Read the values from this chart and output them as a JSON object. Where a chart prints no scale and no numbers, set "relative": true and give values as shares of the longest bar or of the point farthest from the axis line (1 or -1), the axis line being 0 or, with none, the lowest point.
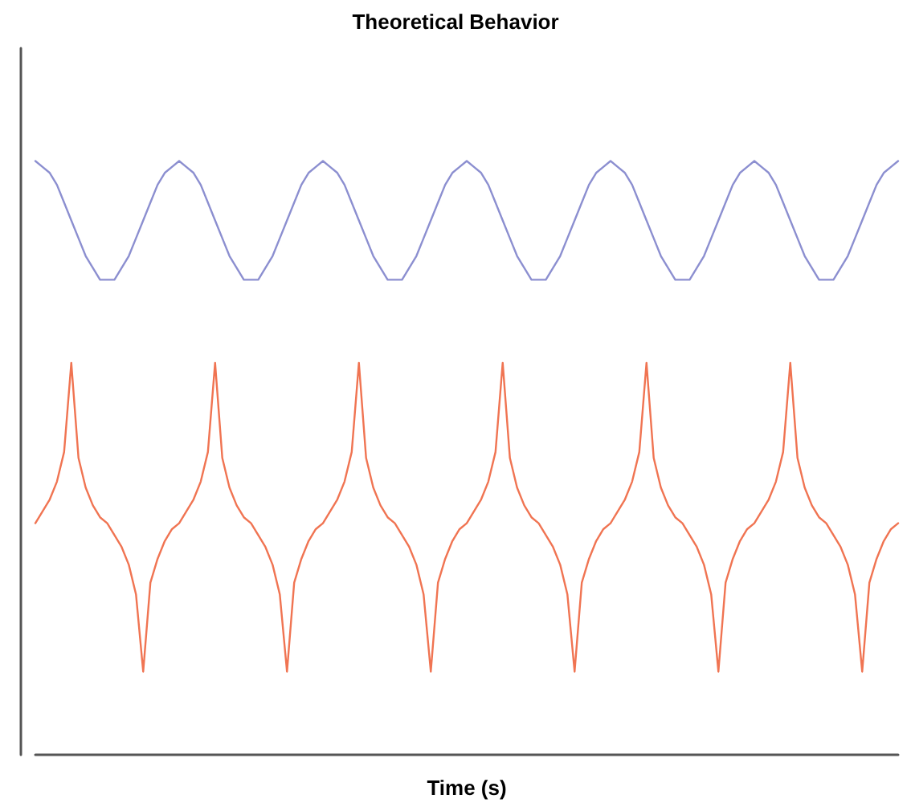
{
  "chart_data": {
    "type": "line",
    "title": "Theoretical Behavior",
    "xlabel": "Time (s)",
    "relative": true,
    "line_style": "solid",
    "grid": false,
    "categories": [
      null,
      null,
      null,
      null,
      null,
      null,
      null,
      null,
      null,
      null,
      null,
      null,
      null,
      null,
      null,
      null,
      null,
      null,
      null,
      null,
      null,
      null,
      null,
      null,
      null,
      null,
      null,
      null,
      null,
      null,
      null,
      null,
      null,
      null,
      null,
      null,
      null,
      null,
      null,
      null,
      null,
      null,
      null,
      null,
      null,
      null,
      null,
      null,
      null,
      null,
      null,
      null,
      null,
      null,
      null,
      null,
      null,
      null,
      null,
      null,
      null,
      null,
      null,
      null,
      null,
      null,
      null,
      null,
      null,
      null,
      null,
      null,
      null,
      null,
      null,
      null,
      null,
      null,
      null,
      null,
      null,
      null,
      null,
      null,
      null,
      null,
      null,
      null,
      null,
      null,
      null,
      null,
      null,
      null,
      null,
      null,
      null,
      null,
      null,
      null,
      null,
      null,
      null,
      null,
      null,
      null,
      null,
      null,
      null,
      null,
      null,
      null,
      null,
      null,
      null,
      null,
      null,
      null,
      null,
      null,
      null
    ],
    "series": [
      {
        "color": "#8c8fd0",
        "values": [
          1,
          0.99,
          0.98,
          0.96,
          0.93,
          0.9,
          0.87,
          0.84,
          0.82,
          0.8,
          0.8,
          0.8,
          0.82,
          0.84,
          0.87,
          0.9,
          0.93,
          0.96,
          0.98,
          0.99,
          1,
          0.99,
          0.98,
          0.96,
          0.93,
          0.9,
          0.87,
          0.84,
          0.82,
          0.8,
          0.8,
          0.8,
          0.82,
          0.84,
          0.87,
          0.9,
          0.93,
          0.96,
          0.98,
          0.99,
          1,
          0.99,
          0.98,
          0.96,
          0.93,
          0.9,
          0.87,
          0.84,
          0.82,
          0.8,
          0.8,
          0.8,
          0.82,
          0.84,
          0.87,
          0.9,
          0.93,
          0.96,
          0.98,
          0.99,
          1,
          0.99,
          0.98,
          0.96,
          0.93,
          0.9,
          0.87,
          0.84,
          0.82,
          0.8,
          0.8,
          0.8,
          0.82,
          0.84,
          0.87,
          0.9,
          0.93,
          0.96,
          0.98,
          0.99,
          1,
          0.99,
          0.98,
          0.96,
          0.93,
          0.9,
          0.87,
          0.84,
          0.82,
          0.8,
          0.8,
          0.8,
          0.82,
          0.84,
          0.87,
          0.9,
          0.93,
          0.96,
          0.98,
          0.99,
          1,
          0.99,
          0.98,
          0.96,
          0.93,
          0.9,
          0.87,
          0.84,
          0.82,
          0.8,
          0.8,
          0.8,
          0.82,
          0.84,
          0.87,
          0.9,
          0.93,
          0.96,
          0.98,
          0.99,
          1
        ]
      },
      {
        "color": "#f07452",
        "values": [
          0.39,
          0.41,
          0.43,
          0.46,
          0.51,
          0.66,
          0.5,
          0.45,
          0.42,
          0.4,
          0.39,
          0.37,
          0.35,
          0.32,
          0.27,
          0.14,
          0.29,
          0.33,
          0.36,
          0.38,
          0.39,
          0.41,
          0.43,
          0.46,
          0.51,
          0.66,
          0.5,
          0.45,
          0.42,
          0.4,
          0.39,
          0.37,
          0.35,
          0.32,
          0.27,
          0.14,
          0.29,
          0.33,
          0.36,
          0.38,
          0.39,
          0.41,
          0.43,
          0.46,
          0.51,
          0.66,
          0.5,
          0.45,
          0.42,
          0.4,
          0.39,
          0.37,
          0.35,
          0.32,
          0.27,
          0.14,
          0.29,
          0.33,
          0.36,
          0.38,
          0.39,
          0.41,
          0.43,
          0.46,
          0.51,
          0.66,
          0.5,
          0.45,
          0.42,
          0.4,
          0.39,
          0.37,
          0.35,
          0.32,
          0.27,
          0.14,
          0.29,
          0.33,
          0.36,
          0.38,
          0.39,
          0.41,
          0.43,
          0.46,
          0.51,
          0.66,
          0.5,
          0.45,
          0.42,
          0.4,
          0.39,
          0.37,
          0.35,
          0.32,
          0.27,
          0.14,
          0.29,
          0.33,
          0.36,
          0.38,
          0.39,
          0.41,
          0.43,
          0.46,
          0.51,
          0.66,
          0.5,
          0.45,
          0.42,
          0.4,
          0.39,
          0.37,
          0.35,
          0.32,
          0.27,
          0.14,
          0.29,
          0.33,
          0.36,
          0.38,
          0.39
        ]
      }
    ]
  }
}
